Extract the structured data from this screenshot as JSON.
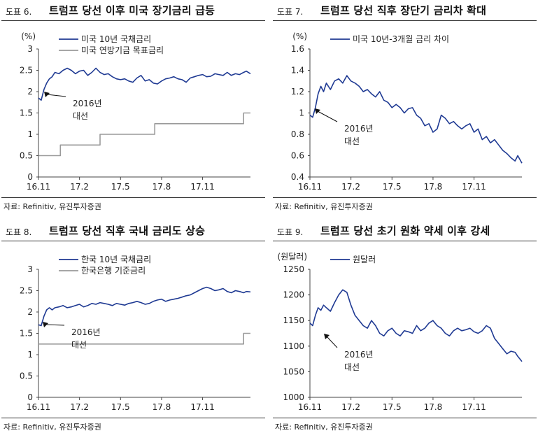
{
  "colors": {
    "navy": "#1f3a93",
    "gray": "#9a9a9a",
    "axis": "#444444"
  },
  "source": "자료: Refinitiv, 유진투자증권",
  "annotation": {
    "line1": "2016년",
    "line2": "대선"
  },
  "panels": [
    {
      "fig": "도표 6.",
      "title": "트럼프 당선 이후 미국 장기금리 급등",
      "chart_data": {
        "type": "line",
        "unit": "(%)",
        "ylim": [
          0,
          3
        ],
        "yticks": [
          0,
          0.5,
          1,
          1.5,
          2,
          2.5,
          3
        ],
        "xticks": [
          "16.11",
          "17.2",
          "17.5",
          "17.8",
          "17.11"
        ],
        "xrange": [
          0,
          15.5
        ],
        "legend": [
          "미국 10년 국채금리",
          "미국 연방기금 목표금리"
        ],
        "series": [
          {
            "name": "미국 10년 국채금리",
            "color": "navy",
            "x": [
              0,
              0.2,
              0.4,
              0.6,
              0.8,
              1.0,
              1.2,
              1.5,
              1.8,
              2.1,
              2.4,
              2.7,
              3.0,
              3.3,
              3.6,
              3.9,
              4.2,
              4.5,
              4.8,
              5.1,
              5.4,
              5.7,
              6.0,
              6.3,
              6.6,
              6.9,
              7.2,
              7.5,
              7.8,
              8.1,
              8.4,
              8.7,
              9.0,
              9.3,
              9.6,
              9.9,
              10.2,
              10.5,
              10.8,
              11.1,
              11.4,
              11.7,
              12.0,
              12.3,
              12.6,
              12.9,
              13.2,
              13.5,
              13.8,
              14.1,
              14.4,
              14.7,
              15.0,
              15.2,
              15.5
            ],
            "values": [
              1.85,
              1.8,
              2.05,
              2.2,
              2.3,
              2.35,
              2.45,
              2.42,
              2.5,
              2.55,
              2.5,
              2.42,
              2.48,
              2.5,
              2.38,
              2.45,
              2.55,
              2.45,
              2.4,
              2.42,
              2.35,
              2.3,
              2.28,
              2.3,
              2.25,
              2.22,
              2.32,
              2.38,
              2.25,
              2.28,
              2.2,
              2.18,
              2.25,
              2.3,
              2.32,
              2.35,
              2.3,
              2.28,
              2.22,
              2.32,
              2.35,
              2.38,
              2.4,
              2.35,
              2.36,
              2.42,
              2.4,
              2.38,
              2.45,
              2.38,
              2.42,
              2.4,
              2.45,
              2.48,
              2.42
            ]
          },
          {
            "name": "미국 연방기금 목표금리",
            "color": "gray",
            "x": [
              0,
              1.6,
              1.6,
              4.5,
              4.5,
              7.0,
              7.0,
              8.5,
              8.5,
              15.0,
              15.0,
              15.5
            ],
            "values": [
              0.5,
              0.5,
              0.75,
              0.75,
              1.0,
              1.0,
              1.0,
              1.0,
              1.25,
              1.25,
              1.5,
              1.5
            ]
          }
        ]
      }
    },
    {
      "fig": "도표 7.",
      "title": "트럼프 당선 직후 장단기 금리차 확대",
      "chart_data": {
        "type": "line",
        "unit": "(%)",
        "ylim": [
          0.4,
          1.6
        ],
        "yticks": [
          0.4,
          0.6,
          0.8,
          1,
          1.2,
          1.4,
          1.6
        ],
        "xticks": [
          "16.11",
          "17.2",
          "17.5",
          "17.8",
          "17.11"
        ],
        "xrange": [
          0,
          15.5
        ],
        "legend": [
          "미국 10년-3개월 금리 차이"
        ],
        "series": [
          {
            "name": "미국 10년-3개월 금리 차이",
            "color": "navy",
            "x": [
              0,
              0.2,
              0.4,
              0.6,
              0.8,
              1.0,
              1.2,
              1.5,
              1.8,
              2.1,
              2.4,
              2.7,
              3.0,
              3.3,
              3.6,
              3.9,
              4.2,
              4.5,
              4.8,
              5.1,
              5.4,
              5.7,
              6.0,
              6.3,
              6.6,
              6.9,
              7.2,
              7.5,
              7.8,
              8.1,
              8.4,
              8.7,
              9.0,
              9.3,
              9.6,
              9.9,
              10.2,
              10.5,
              10.8,
              11.1,
              11.4,
              11.7,
              12.0,
              12.3,
              12.6,
              12.9,
              13.2,
              13.5,
              13.8,
              14.1,
              14.4,
              14.7,
              15.0,
              15.2,
              15.5
            ],
            "values": [
              0.98,
              0.96,
              1.05,
              1.18,
              1.25,
              1.2,
              1.28,
              1.22,
              1.3,
              1.32,
              1.28,
              1.35,
              1.3,
              1.28,
              1.25,
              1.2,
              1.22,
              1.18,
              1.15,
              1.2,
              1.12,
              1.1,
              1.05,
              1.08,
              1.05,
              1.0,
              1.04,
              1.05,
              0.98,
              0.95,
              0.88,
              0.9,
              0.82,
              0.85,
              0.98,
              0.95,
              0.9,
              0.92,
              0.88,
              0.85,
              0.88,
              0.9,
              0.82,
              0.85,
              0.75,
              0.78,
              0.72,
              0.75,
              0.7,
              0.65,
              0.62,
              0.58,
              0.55,
              0.6,
              0.53
            ]
          }
        ]
      }
    },
    {
      "fig": "도표 8.",
      "title": "트럼프 당선 직후 국내 금리도 상승",
      "chart_data": {
        "type": "line",
        "unit": "",
        "ylim": [
          0,
          3
        ],
        "yticks": [
          0,
          0.5,
          1,
          1.5,
          2,
          2.5,
          3
        ],
        "xticks": [
          "16.11",
          "17.2",
          "17.5",
          "17.8",
          "17.11"
        ],
        "xrange": [
          0,
          15.5
        ],
        "legend": [
          "한국 10년 국채금리",
          "한국은행 기준금리"
        ],
        "series": [
          {
            "name": "한국 10년 국채금리",
            "color": "navy",
            "x": [
              0,
              0.2,
              0.4,
              0.6,
              0.8,
              1.0,
              1.2,
              1.5,
              1.8,
              2.1,
              2.4,
              2.7,
              3.0,
              3.3,
              3.6,
              3.9,
              4.2,
              4.5,
              4.8,
              5.1,
              5.4,
              5.7,
              6.0,
              6.3,
              6.6,
              6.9,
              7.2,
              7.5,
              7.8,
              8.1,
              8.4,
              8.7,
              9.0,
              9.3,
              9.6,
              9.9,
              10.2,
              10.5,
              10.8,
              11.1,
              11.4,
              11.7,
              12.0,
              12.3,
              12.6,
              12.9,
              13.2,
              13.5,
              13.8,
              14.1,
              14.4,
              14.7,
              15.0,
              15.2,
              15.5
            ],
            "values": [
              1.7,
              1.68,
              1.9,
              2.05,
              2.1,
              2.05,
              2.1,
              2.12,
              2.15,
              2.1,
              2.12,
              2.15,
              2.18,
              2.12,
              2.15,
              2.2,
              2.18,
              2.22,
              2.2,
              2.18,
              2.15,
              2.2,
              2.18,
              2.16,
              2.2,
              2.22,
              2.25,
              2.22,
              2.18,
              2.2,
              2.25,
              2.28,
              2.3,
              2.25,
              2.28,
              2.3,
              2.32,
              2.35,
              2.38,
              2.4,
              2.45,
              2.5,
              2.55,
              2.58,
              2.55,
              2.5,
              2.52,
              2.55,
              2.48,
              2.45,
              2.5,
              2.48,
              2.45,
              2.48,
              2.47
            ]
          },
          {
            "name": "한국은행 기준금리",
            "color": "gray",
            "x": [
              0,
              15.0,
              15.0,
              15.5
            ],
            "values": [
              1.25,
              1.25,
              1.5,
              1.5
            ]
          }
        ]
      }
    },
    {
      "fig": "도표 9.",
      "title": "트럼프 당선 초기 원화 약세 이후 강세",
      "chart_data": {
        "type": "line",
        "unit": "(원달러)",
        "ylim": [
          1000,
          1250
        ],
        "yticks": [
          1000,
          1050,
          1100,
          1150,
          1200,
          1250
        ],
        "xticks": [
          "16.11",
          "17.2",
          "17.5",
          "17.8",
          "17.11"
        ],
        "xrange": [
          0,
          15.5
        ],
        "legend": [
          "원달러"
        ],
        "series": [
          {
            "name": "원달러",
            "color": "navy",
            "x": [
              0,
              0.2,
              0.4,
              0.6,
              0.8,
              1.0,
              1.2,
              1.5,
              1.8,
              2.1,
              2.4,
              2.7,
              3.0,
              3.3,
              3.6,
              3.9,
              4.2,
              4.5,
              4.8,
              5.1,
              5.4,
              5.7,
              6.0,
              6.3,
              6.6,
              6.9,
              7.2,
              7.5,
              7.8,
              8.1,
              8.4,
              8.7,
              9.0,
              9.3,
              9.6,
              9.9,
              10.2,
              10.5,
              10.8,
              11.1,
              11.4,
              11.7,
              12.0,
              12.3,
              12.6,
              12.9,
              13.2,
              13.5,
              13.8,
              14.1,
              14.4,
              14.7,
              15.0,
              15.2,
              15.5
            ],
            "values": [
              1145,
              1140,
              1160,
              1175,
              1170,
              1180,
              1175,
              1168,
              1185,
              1200,
              1210,
              1205,
              1180,
              1160,
              1150,
              1140,
              1135,
              1150,
              1140,
              1125,
              1120,
              1130,
              1135,
              1125,
              1120,
              1130,
              1128,
              1125,
              1140,
              1130,
              1135,
              1145,
              1150,
              1140,
              1135,
              1125,
              1120,
              1130,
              1135,
              1130,
              1132,
              1135,
              1128,
              1125,
              1130,
              1140,
              1135,
              1115,
              1105,
              1095,
              1085,
              1090,
              1088,
              1080,
              1070
            ]
          }
        ]
      }
    }
  ]
}
